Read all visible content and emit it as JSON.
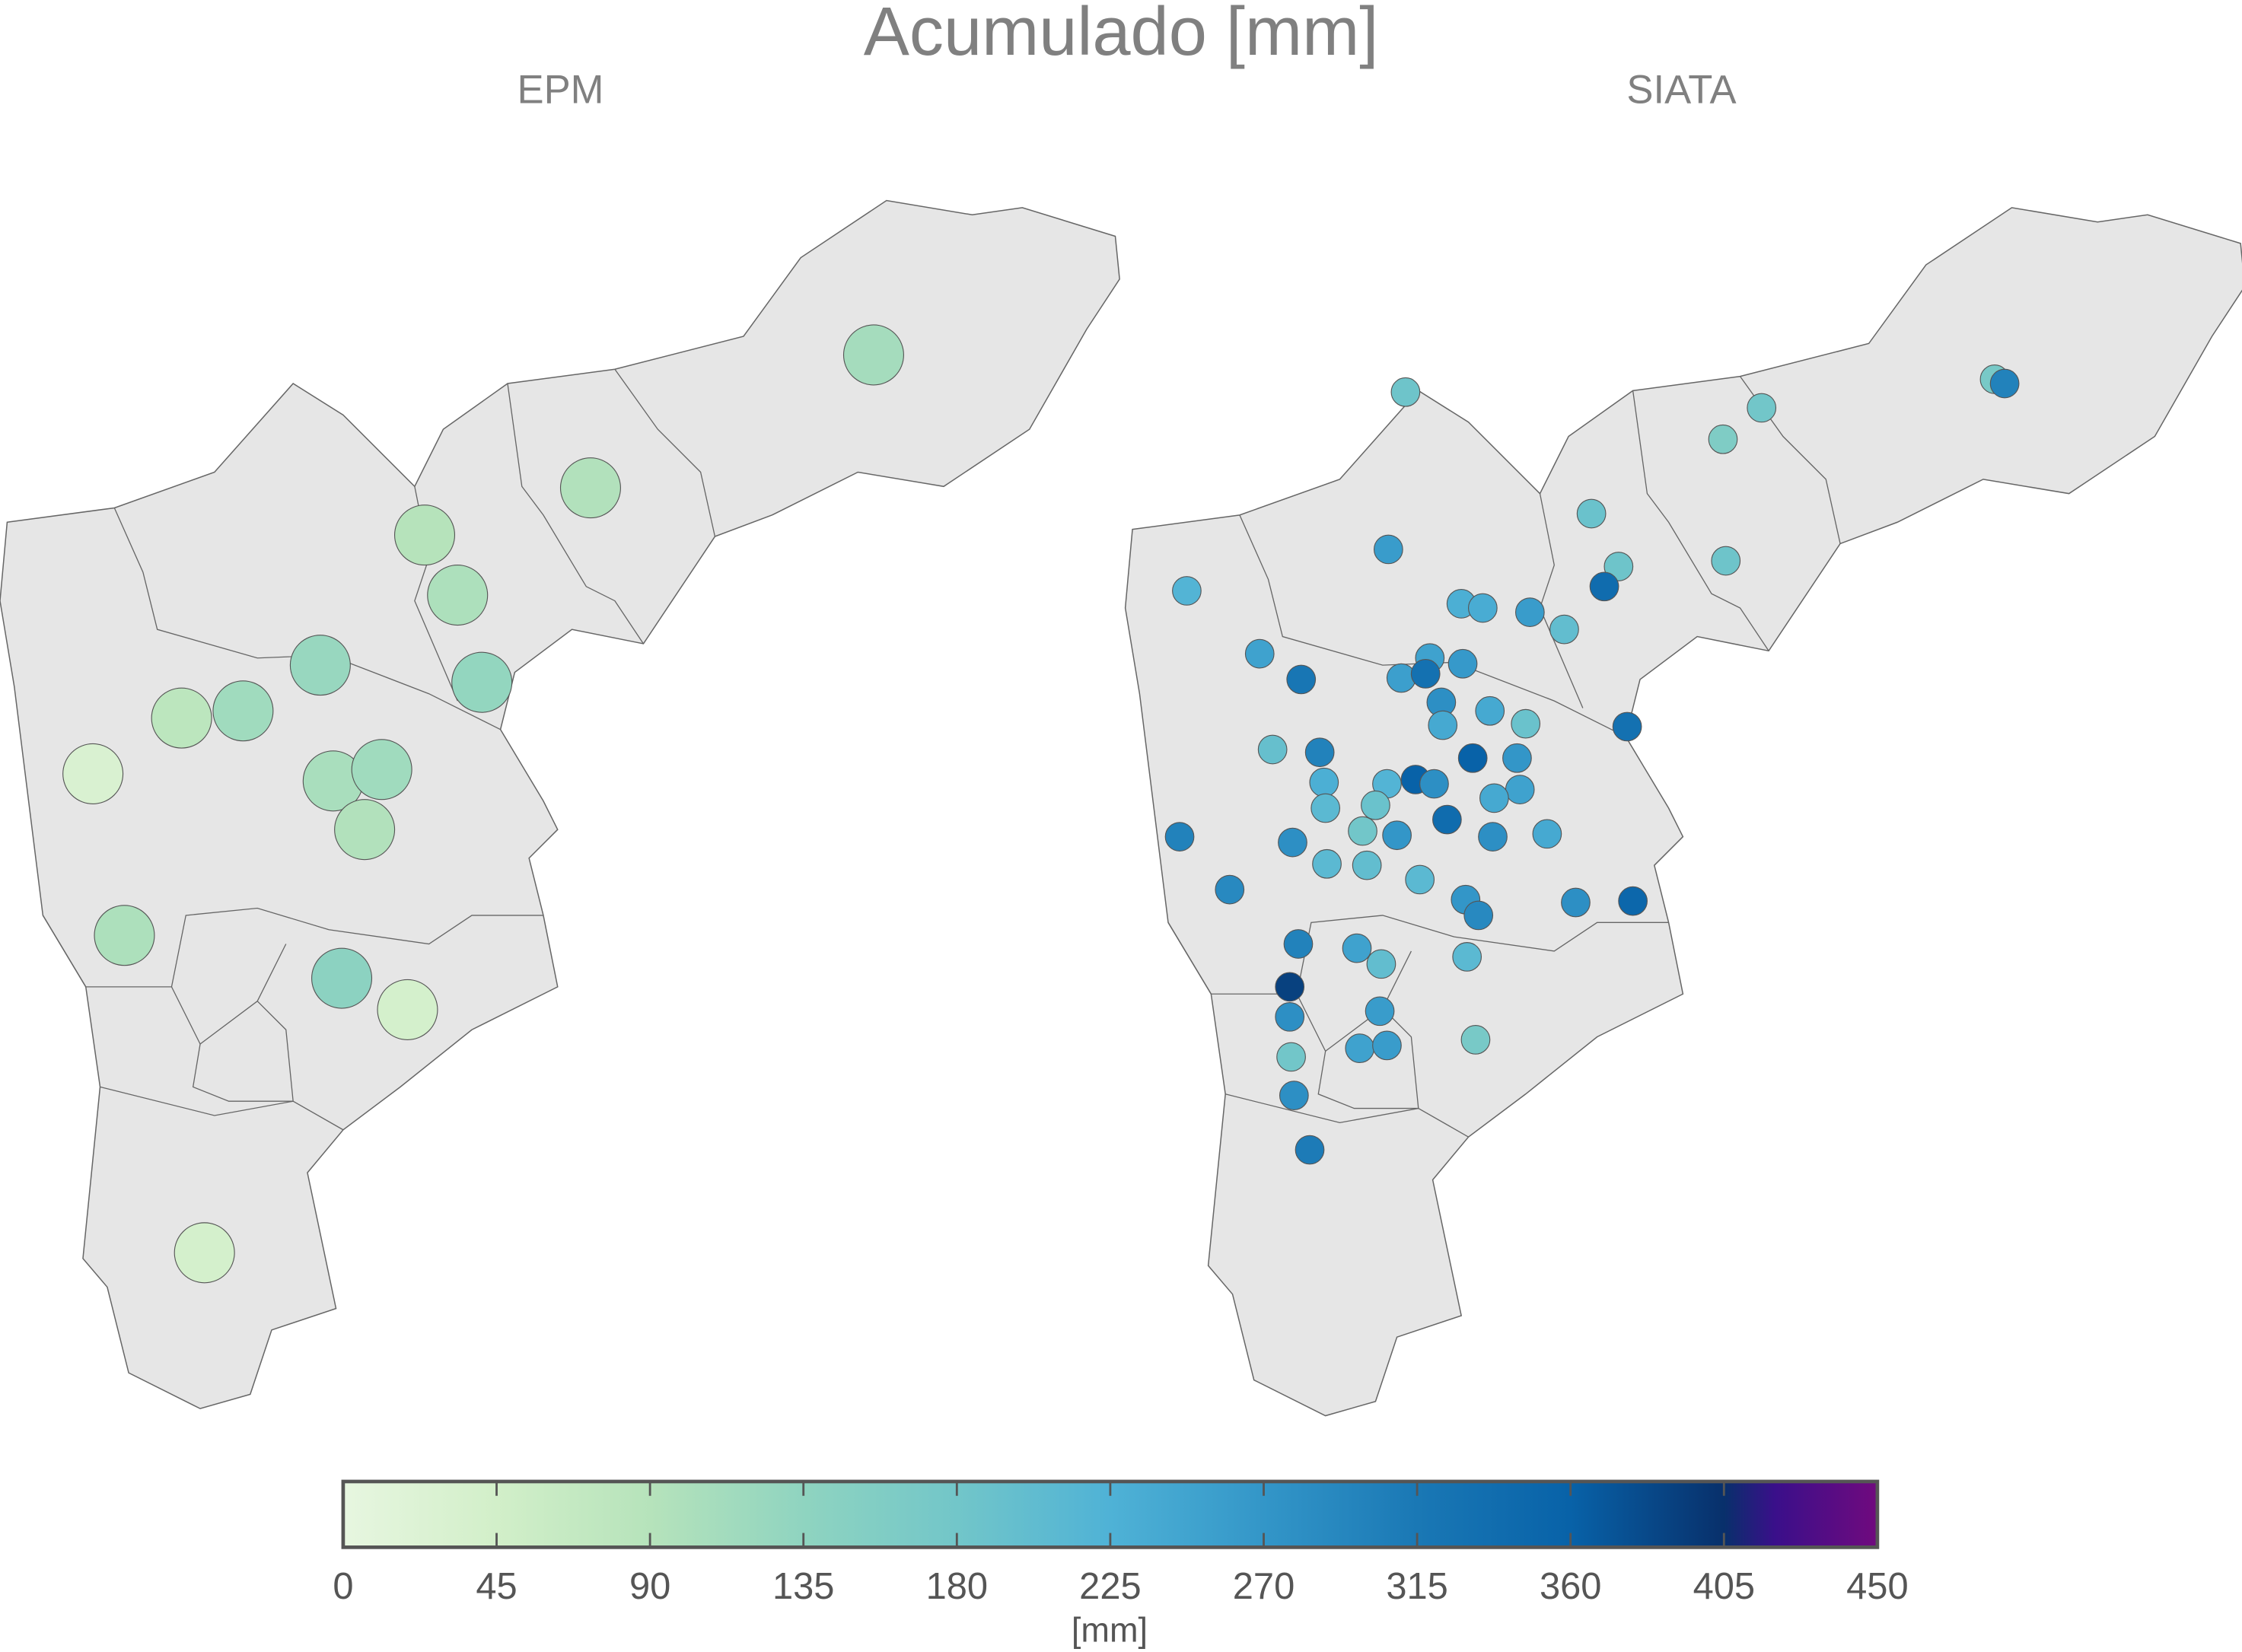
{
  "title": "Acumulado [mm]",
  "panels": [
    {
      "label": "EPM",
      "stations_mm": [
        110,
        95,
        90,
        100,
        125,
        130,
        80,
        115,
        30,
        105,
        115,
        95,
        100,
        140,
        40,
        40
      ]
    },
    {
      "label": "SIATA",
      "stations_mm": [
        185,
        180,
        160,
        170,
        300,
        190,
        260,
        185,
        185,
        220,
        340,
        230,
        235,
        260,
        200,
        250,
        320,
        250,
        265,
        255,
        330,
        280,
        240,
        240,
        190,
        330,
        195,
        300,
        360,
        270,
        230,
        220,
        360,
        280,
        250,
        240,
        210,
        190,
        340,
        300,
        180,
        270,
        280,
        280,
        240,
        210,
        200,
        210,
        290,
        270,
        290,
        280,
        350,
        300,
        250,
        200,
        210,
        390,
        260,
        280,
        170,
        250,
        260,
        180,
        280,
        310
      ]
    }
  ],
  "colorbar": {
    "label": "[mm]",
    "range": [
      0,
      450
    ],
    "ticks": [
      "0",
      "45",
      "90",
      "135",
      "180",
      "225",
      "270",
      "315",
      "360",
      "405",
      "450"
    ],
    "colormap": [
      "#e7f6e0",
      "#d2efc9",
      "#b6e3bb",
      "#8fd4c0",
      "#72c6c9",
      "#4fb2d6",
      "#3396c8",
      "#1a78b5",
      "#0862a8",
      "#08306b",
      "#3a0f8a",
      "#700a7e"
    ]
  },
  "colors": {
    "land": "#e6e6e6",
    "border": "#666666",
    "text": "#808080"
  }
}
